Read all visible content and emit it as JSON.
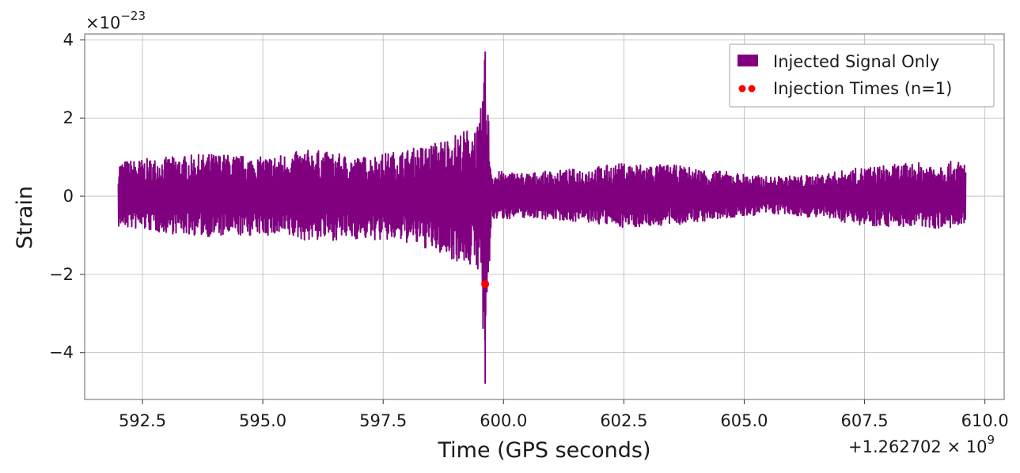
{
  "chart_data": {
    "type": "line",
    "xlabel": "Time (GPS seconds)",
    "ylabel": "Strain",
    "x_offset_label": "+1.262702 × 10",
    "x_offset_exponent": "9",
    "y_scale_label": "×10",
    "y_scale_exponent": "−23",
    "xlim": [
      591.3,
      610.4
    ],
    "ylim": [
      -5.2,
      4.15
    ],
    "x_ticks": [
      592.5,
      595.0,
      597.5,
      600.0,
      602.5,
      605.0,
      607.5,
      610.0
    ],
    "x_tick_labels": [
      "592.5",
      "595.0",
      "597.5",
      "600.0",
      "602.5",
      "605.0",
      "607.5",
      "610.0"
    ],
    "y_ticks": [
      -4,
      -2,
      0,
      2,
      4
    ],
    "y_tick_labels": [
      "−4",
      "−2",
      "0",
      "2",
      "4"
    ],
    "grid": true,
    "legend_position": "top-right",
    "series": [
      {
        "name": "Injected Signal Only",
        "color": "#800080",
        "style": "line",
        "x_range": [
          592.0,
          609.6
        ],
        "envelope": [
          {
            "x": 592.0,
            "upper": 0.9,
            "lower": -0.8
          },
          {
            "x": 593.0,
            "upper": 1.0,
            "lower": -0.95
          },
          {
            "x": 594.0,
            "upper": 1.1,
            "lower": -1.05
          },
          {
            "x": 595.0,
            "upper": 1.0,
            "lower": -1.0
          },
          {
            "x": 596.0,
            "upper": 1.2,
            "lower": -1.15
          },
          {
            "x": 597.0,
            "upper": 1.0,
            "lower": -1.1
          },
          {
            "x": 598.0,
            "upper": 1.2,
            "lower": -1.2
          },
          {
            "x": 598.5,
            "upper": 1.35,
            "lower": -1.4
          },
          {
            "x": 599.0,
            "upper": 1.6,
            "lower": -1.65
          },
          {
            "x": 599.5,
            "upper": 1.85,
            "lower": -1.9
          },
          {
            "x": 599.62,
            "upper": 3.7,
            "lower": -4.8
          },
          {
            "x": 599.75,
            "upper": 0.65,
            "lower": -0.6
          },
          {
            "x": 600.5,
            "upper": 0.6,
            "lower": -0.55
          },
          {
            "x": 601.5,
            "upper": 0.7,
            "lower": -0.65
          },
          {
            "x": 602.5,
            "upper": 0.85,
            "lower": -0.8
          },
          {
            "x": 603.5,
            "upper": 0.8,
            "lower": -0.75
          },
          {
            "x": 604.5,
            "upper": 0.65,
            "lower": -0.6
          },
          {
            "x": 605.5,
            "upper": 0.5,
            "lower": -0.45
          },
          {
            "x": 606.5,
            "upper": 0.55,
            "lower": -0.55
          },
          {
            "x": 607.5,
            "upper": 0.75,
            "lower": -0.75
          },
          {
            "x": 608.5,
            "upper": 0.85,
            "lower": -0.8
          },
          {
            "x": 609.6,
            "upper": 0.9,
            "lower": -0.85
          }
        ]
      },
      {
        "name": "Injection Times (n=1)",
        "color": "#ff0000",
        "style": "marker",
        "points": [
          {
            "x": 599.62,
            "y": -2.25
          }
        ]
      }
    ]
  }
}
